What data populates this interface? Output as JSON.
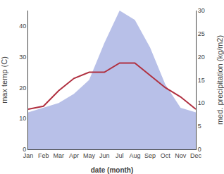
{
  "chart_data": {
    "type": "line",
    "categories": [
      "Jan",
      "Feb",
      "Mar",
      "Apr",
      "May",
      "Jun",
      "Jul",
      "Aug",
      "Sep",
      "Oct",
      "Nov",
      "Dec"
    ],
    "xlabel": "date (month)",
    "ylabel": "max temp (C)",
    "y2label": "med. precipitation (kg/m2)",
    "series": [
      {
        "type": "area",
        "axis": "y2",
        "color": "#b8c0e8",
        "values": [
          8,
          9,
          10,
          12,
          15,
          23,
          30,
          28,
          22,
          14,
          9,
          8
        ]
      },
      {
        "type": "line",
        "color": "#b03040",
        "values": [
          13,
          14,
          19,
          23,
          25,
          25,
          28,
          28,
          24,
          20,
          17,
          13
        ]
      }
    ],
    "ylim": [
      0,
      45
    ],
    "yticks": [
      0,
      10,
      20,
      30,
      40
    ],
    "y2lim": [
      0,
      30
    ],
    "y2ticks": [
      0,
      5,
      10,
      15,
      20,
      25,
      30
    ],
    "grid": false
  }
}
